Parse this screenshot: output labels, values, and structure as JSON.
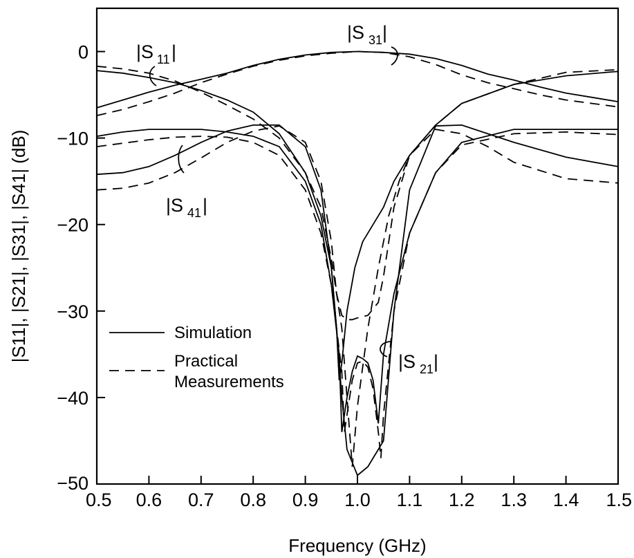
{
  "chart_data": {
    "type": "line",
    "xlabel": "Frequency (GHz)",
    "ylabel": "|S11|, |S21|, |S31|, |S41| (dB)",
    "xlim": [
      0.5,
      1.5
    ],
    "ylim": [
      -50,
      5
    ],
    "xticks": [
      "0.5",
      "0.6",
      "0.7",
      "0.8",
      "0.9",
      "1.0",
      "1.1",
      "1.2",
      "1.3",
      "1.4",
      "1.5"
    ],
    "yticks": [
      {
        "value": 0,
        "label": "0"
      },
      {
        "value": -10,
        "label": "−10"
      },
      {
        "value": -20,
        "label": "−20"
      },
      {
        "value": -30,
        "label": "−30"
      },
      {
        "value": -40,
        "label": "−40"
      },
      {
        "value": -50,
        "label": "−50"
      }
    ],
    "grid": false,
    "legend": [
      {
        "label": "Simulation",
        "style": "solid"
      },
      {
        "label": "Practical",
        "label2": "Measurements",
        "style": "dashed"
      }
    ],
    "annotations": [
      {
        "main": "|S",
        "sub": "11",
        "close": "|"
      },
      {
        "main": "|S",
        "sub": "31",
        "close": "|"
      },
      {
        "main": "|S",
        "sub": "41",
        "close": "|"
      },
      {
        "main": "|S",
        "sub": "21",
        "close": "|"
      }
    ],
    "series": [
      {
        "style": "solid",
        "x": [
          0.5,
          0.55,
          0.6,
          0.65,
          0.7,
          0.75,
          0.8,
          0.85,
          0.9,
          0.95,
          1.0,
          1.05,
          1.1,
          1.15,
          1.2,
          1.25,
          1.3,
          1.35,
          1.4,
          1.45,
          1.5
        ],
        "y": [
          -6.5,
          -5.6,
          -4.7,
          -3.9,
          -3.2,
          -2.5,
          -1.6,
          -0.9,
          -0.4,
          -0.1,
          0,
          -0.1,
          -0.3,
          -0.8,
          -1.6,
          -2.6,
          -3.3,
          -4.1,
          -4.8,
          -5.3,
          -5.8
        ]
      },
      {
        "style": "dashed",
        "x": [
          0.5,
          0.55,
          0.6,
          0.65,
          0.7,
          0.75,
          0.8,
          0.85,
          0.9,
          0.95,
          1.0,
          1.05,
          1.1,
          1.15,
          1.2,
          1.25,
          1.3,
          1.35,
          1.4,
          1.45,
          1.5
        ],
        "y": [
          -7.4,
          -6.7,
          -5.8,
          -4.8,
          -3.6,
          -2.6,
          -1.7,
          -1.0,
          -0.5,
          -0.2,
          0,
          -0.1,
          -0.6,
          -1.5,
          -2.7,
          -3.6,
          -4.3,
          -5.0,
          -5.6,
          -6.0,
          -6.4
        ]
      },
      {
        "style": "solid",
        "x": [
          0.5,
          0.55,
          0.6,
          0.65,
          0.7,
          0.75,
          0.8,
          0.85,
          0.9,
          0.93,
          0.95,
          0.96,
          0.965,
          0.97,
          0.98,
          0.995,
          1.01,
          1.03,
          1.05,
          1.07,
          1.1,
          1.15,
          1.2,
          1.3,
          1.4,
          1.5
        ],
        "y": [
          -2.2,
          -2.5,
          -3.0,
          -3.6,
          -4.5,
          -5.6,
          -7.0,
          -9.5,
          -14,
          -19,
          -25,
          -32,
          -38,
          -36,
          -30,
          -25,
          -22,
          -20,
          -18,
          -15,
          -12,
          -8.5,
          -6.0,
          -3.8,
          -2.8,
          -2.3
        ]
      },
      {
        "style": "dashed",
        "x": [
          0.5,
          0.55,
          0.6,
          0.65,
          0.7,
          0.75,
          0.8,
          0.85,
          0.9,
          0.93,
          0.95,
          0.97,
          0.98,
          0.99,
          1.0,
          1.02,
          1.04,
          1.06,
          1.08,
          1.1,
          1.15,
          1.2,
          1.3,
          1.4,
          1.5
        ],
        "y": [
          -1.7,
          -2.0,
          -2.5,
          -3.4,
          -4.7,
          -6.2,
          -7.8,
          -10,
          -14,
          -18,
          -24,
          -32,
          -40,
          -48,
          -41,
          -32,
          -25,
          -19,
          -15,
          -12,
          -8.5,
          -6.0,
          -3.8,
          -2.4,
          -2.1
        ]
      },
      {
        "style": "solid",
        "x": [
          0.5,
          0.55,
          0.6,
          0.65,
          0.7,
          0.75,
          0.8,
          0.85,
          0.9,
          0.93,
          0.95,
          0.965,
          0.97,
          0.98,
          0.99,
          1.0,
          1.01,
          1.02,
          1.03,
          1.04,
          1.05,
          1.07,
          1.1,
          1.15,
          1.2,
          1.3,
          1.4,
          1.5
        ],
        "y": [
          -9.8,
          -9.3,
          -9.0,
          -9.0,
          -9.0,
          -9.3,
          -9.8,
          -11,
          -15,
          -20,
          -27,
          -35,
          -44,
          -40,
          -37,
          -35.2,
          -35.5,
          -36,
          -38,
          -43,
          -35,
          -28,
          -21,
          -14,
          -10.5,
          -9,
          -9,
          -9
        ]
      },
      {
        "style": "dashed",
        "x": [
          0.5,
          0.55,
          0.6,
          0.65,
          0.7,
          0.75,
          0.8,
          0.85,
          0.9,
          0.93,
          0.95,
          0.97,
          0.975,
          0.98,
          0.99,
          1.0,
          1.01,
          1.02,
          1.03,
          1.04,
          1.045,
          1.05,
          1.07,
          1.1,
          1.15,
          1.2,
          1.3,
          1.4,
          1.5
        ],
        "y": [
          -11,
          -10.6,
          -10.2,
          -9.9,
          -9.8,
          -9.9,
          -10.5,
          -12,
          -16,
          -21,
          -27,
          -37,
          -44,
          -42,
          -38,
          -36,
          -35.8,
          -36.5,
          -39,
          -44,
          -47,
          -42,
          -30,
          -21,
          -14,
          -10.8,
          -9.5,
          -9.3,
          -9.6
        ]
      },
      {
        "style": "solid",
        "x": [
          0.5,
          0.55,
          0.6,
          0.65,
          0.7,
          0.75,
          0.8,
          0.85,
          0.9,
          0.93,
          0.95,
          0.96,
          0.97,
          0.98,
          1.0,
          1.02,
          1.03,
          1.04,
          1.05,
          1.07,
          1.1,
          1.15,
          1.2,
          1.25,
          1.3,
          1.4,
          1.5
        ],
        "y": [
          -14.2,
          -14,
          -13.3,
          -12,
          -10.5,
          -9.2,
          -8.5,
          -8.5,
          -11,
          -16,
          -25,
          -32,
          -40,
          -46,
          -49,
          -48,
          -47,
          -46,
          -45,
          -30,
          -16,
          -8.6,
          -8.5,
          -9.5,
          -10.5,
          -12.2,
          -13.3
        ]
      },
      {
        "style": "dashed",
        "x": [
          0.5,
          0.55,
          0.6,
          0.65,
          0.7,
          0.75,
          0.8,
          0.85,
          0.9,
          0.93,
          0.95,
          0.96,
          0.97,
          0.98,
          0.99,
          1.0,
          1.02,
          1.04,
          1.05,
          1.07,
          1.1,
          1.15,
          1.2,
          1.25,
          1.3,
          1.4,
          1.5
        ],
        "y": [
          -16,
          -15.8,
          -15.2,
          -14,
          -12.3,
          -10.5,
          -9.2,
          -8.6,
          -10.5,
          -15,
          -22,
          -28,
          -30.5,
          -31,
          -31,
          -30.8,
          -30.5,
          -29,
          -26,
          -18,
          -12,
          -9,
          -9.5,
          -11,
          -12.8,
          -14.7,
          -15.2
        ]
      }
    ]
  }
}
